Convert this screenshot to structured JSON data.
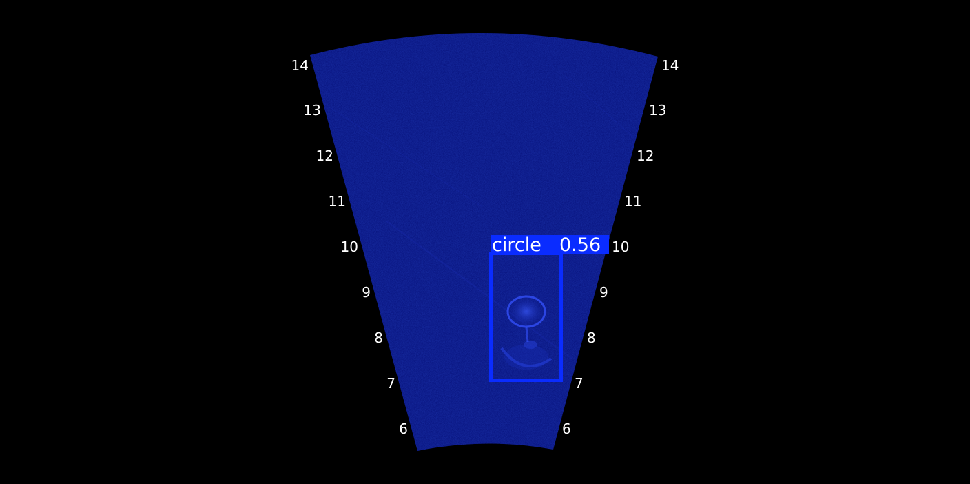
{
  "sonar": {
    "range_ticks_left": [
      "14",
      "13",
      "12",
      "11",
      "10",
      "9",
      "8",
      "7",
      "6"
    ],
    "range_ticks_right": [
      "14",
      "13",
      "12",
      "11",
      "10",
      "9",
      "8",
      "7",
      "6"
    ],
    "fan_color": "#06107a",
    "background_color": "#000000"
  },
  "detection": {
    "label": "circle",
    "confidence": "0.56",
    "box_color": "#0a2cff"
  }
}
